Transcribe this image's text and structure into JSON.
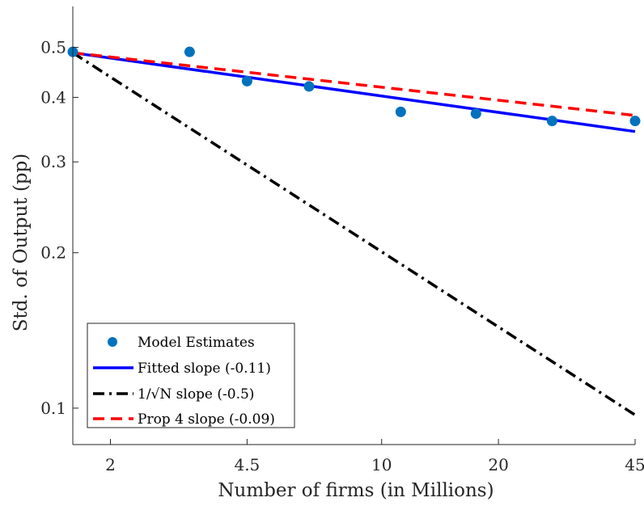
{
  "chart_data": {
    "type": "scatter",
    "xlabel": "Number of firms (in Millions)",
    "ylabel": "Std. of Output (pp)",
    "x_scale": "log",
    "y_scale": "log",
    "xlim": [
      1.6,
      45
    ],
    "ylim": [
      0.085,
      0.6
    ],
    "x_ticks": [
      2,
      4.5,
      10,
      20,
      45
    ],
    "x_tick_labels": [
      "2",
      "4.5",
      "10",
      "20",
      "45"
    ],
    "y_ticks": [
      0.1,
      0.2,
      0.3,
      0.4,
      0.5
    ],
    "y_tick_labels": [
      "0.1",
      "0.2",
      "0.3",
      "0.4",
      "0.5"
    ],
    "grid": false,
    "legend_position": "bottom-left",
    "series": [
      {
        "name": "Model Estimates",
        "kind": "scatter",
        "color": "#0072BD",
        "x": [
          1.6,
          3.2,
          4.5,
          6.5,
          11.2,
          17.5,
          27.5,
          45
        ],
        "y": [
          0.49,
          0.49,
          0.43,
          0.42,
          0.375,
          0.372,
          0.36,
          0.36
        ]
      },
      {
        "name": "Fitted slope (-0.11)",
        "kind": "line",
        "style": "solid",
        "color": "#0000FF",
        "x": [
          1.6,
          45
        ],
        "y": [
          0.488,
          0.3435
        ]
      },
      {
        "name": "1/√N slope (-0.5)",
        "kind": "line",
        "style": "dashdot",
        "color": "#000000",
        "x": [
          1.6,
          45
        ],
        "y": [
          0.488,
          0.097
        ]
      },
      {
        "name": "Prop 4 slope (-0.09)",
        "kind": "line",
        "style": "dashed",
        "color": "#FF0000",
        "x": [
          1.6,
          45
        ],
        "y": [
          0.488,
          0.369
        ]
      }
    ]
  }
}
